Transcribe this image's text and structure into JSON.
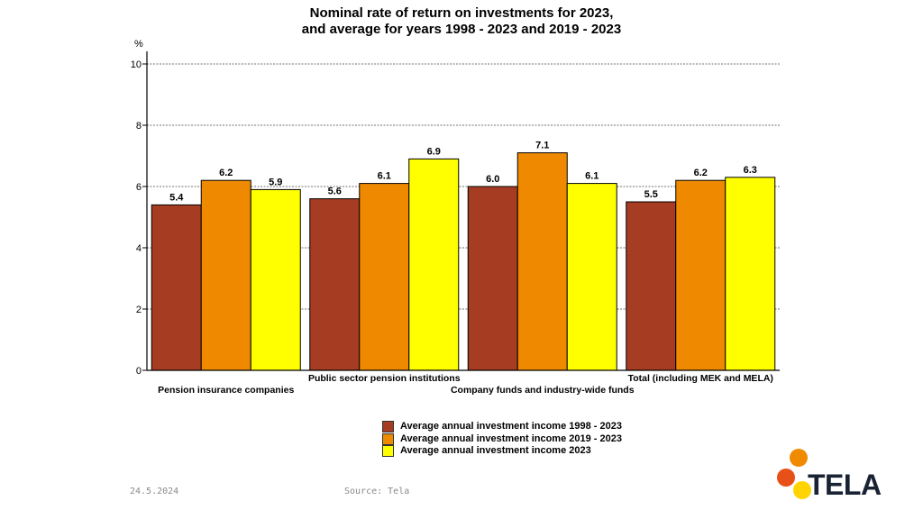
{
  "chart_data": {
    "type": "bar",
    "title_lines": [
      "Nominal rate of return on investments for 2023,",
      "and average for years 1998 - 2023 and 2019 - 2023"
    ],
    "ylabel": "%",
    "ylim": [
      0,
      10
    ],
    "yticks": [
      0,
      2,
      4,
      6,
      8,
      10
    ],
    "grid": "horizontal-dashed",
    "legend_position": "bottom-center",
    "categories": [
      "Pension insurance companies",
      "Public sector pension institutions",
      "Company funds and industry-wide funds",
      "Total (including MEK and MELA)"
    ],
    "series": [
      {
        "name": "Average annual investment income 1998 - 2023",
        "color": "#a63c22",
        "values": [
          5.4,
          5.6,
          6.0,
          5.5
        ]
      },
      {
        "name": "Average annual investment income 2019 - 2023",
        "color": "#ef8a00",
        "values": [
          6.2,
          6.1,
          7.1,
          6.2
        ]
      },
      {
        "name": "Average annual investment income 2023",
        "color": "#ffff00",
        "values": [
          5.9,
          6.9,
          6.1,
          6.3
        ]
      }
    ]
  },
  "footer": {
    "date": "24.5.2024",
    "source": "Source: Tela"
  },
  "logo": {
    "text": "TELA",
    "colors": [
      "#f08a00",
      "#e8501a",
      "#ffd400"
    ]
  }
}
